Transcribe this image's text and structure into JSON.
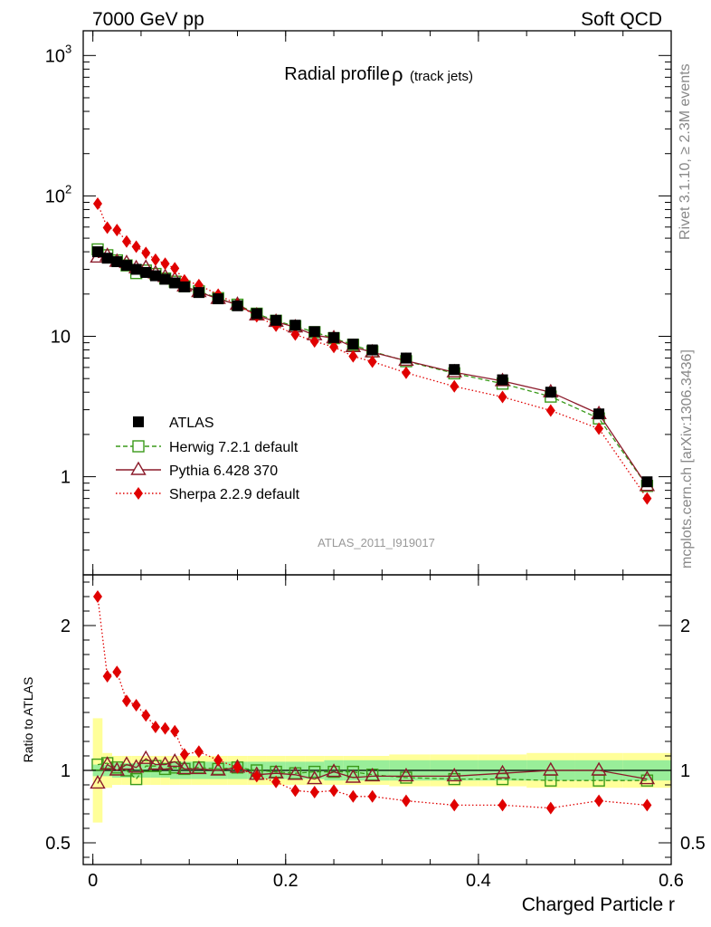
{
  "header": {
    "left": "7000 GeV pp",
    "right": "Soft QCD"
  },
  "side": {
    "top": "Rivet 3.1.10, ≥ 2.3M events",
    "bottom": "mcplots.cern.ch [arXiv:1306.3436]"
  },
  "chart_data": {
    "type": "line",
    "title": "Radial profile",
    "title_symbol": "ρ",
    "title_suffix": "(track jets)",
    "analysis_tag": "ATLAS_2011_I919017",
    "xlabel": "Charged Particle r",
    "ylabel_ratio": "Ratio to ATLAS",
    "xlim": [
      -0.01,
      0.6
    ],
    "ylim_main": [
      0.2,
      1500
    ],
    "ylim_ratio": [
      0.35,
      2.35
    ],
    "y_scale_main": "log",
    "x_ticks": [
      "0",
      "0.2",
      "0.4",
      "0.6"
    ],
    "x_tick_values": [
      0,
      0.2,
      0.4,
      0.6
    ],
    "main_tick_labels": [
      "1",
      "10",
      "10",
      "10"
    ],
    "main_tick_exps": [
      "",
      "",
      "2",
      "3"
    ],
    "main_tick_values": [
      1,
      10,
      100,
      1000
    ],
    "ratio_tick_labels": [
      "0.5",
      "1",
      "2"
    ],
    "ratio_tick_values": [
      0.5,
      1,
      2
    ],
    "legend_position": "center-left",
    "x": [
      0.005,
      0.015,
      0.025,
      0.035,
      0.045,
      0.055,
      0.065,
      0.075,
      0.085,
      0.095,
      0.11,
      0.13,
      0.15,
      0.17,
      0.19,
      0.21,
      0.23,
      0.25,
      0.27,
      0.29,
      0.325,
      0.375,
      0.425,
      0.475,
      0.525,
      0.575
    ],
    "ratio_band_inner_half": [
      0.04,
      0.04,
      0.05,
      0.05,
      0.05,
      0.05,
      0.05,
      0.05,
      0.06,
      0.06,
      0.06,
      0.06,
      0.06,
      0.06,
      0.06,
      0.06,
      0.06,
      0.07,
      0.07,
      0.07,
      0.07,
      0.07,
      0.07,
      0.07,
      0.07,
      0.07
    ],
    "ratio_band_outer_half": [
      0.36,
      0.12,
      0.1,
      0.1,
      0.1,
      0.1,
      0.1,
      0.1,
      0.1,
      0.1,
      0.1,
      0.1,
      0.1,
      0.1,
      0.1,
      0.1,
      0.1,
      0.1,
      0.1,
      0.1,
      0.11,
      0.11,
      0.11,
      0.12,
      0.12,
      0.12
    ],
    "series": [
      {
        "name": "ATLAS",
        "key": "data",
        "color": "#000000",
        "values": [
          40,
          36,
          34,
          32,
          30,
          28.5,
          27,
          25.5,
          24,
          22.5,
          20.5,
          18.5,
          16.5,
          14.5,
          13,
          12,
          10.8,
          9.8,
          8.8,
          8,
          7,
          5.8,
          4.9,
          4,
          2.8,
          0.92
        ],
        "ratio": [
          1,
          1,
          1,
          1,
          1,
          1,
          1,
          1,
          1,
          1,
          1,
          1,
          1,
          1,
          1,
          1,
          1,
          1,
          1,
          1,
          1,
          1,
          1,
          1,
          1,
          1
        ]
      },
      {
        "name": "Herwig 7.2.1 default",
        "key": "herwig",
        "color": "#3a9a1a",
        "values": [
          41.6,
          37.8,
          34.7,
          32,
          28.2,
          29.4,
          27.8,
          25.8,
          24.5,
          22.7,
          20.9,
          18.7,
          16.8,
          14.5,
          12.9,
          11.8,
          10.7,
          9.7,
          8.7,
          7.8,
          6.65,
          5.45,
          4.6,
          3.72,
          2.6,
          0.86
        ],
        "ratio": [
          1.04,
          1.05,
          1.02,
          1.0,
          0.94,
          1.03,
          1.03,
          1.01,
          1.02,
          1.01,
          1.02,
          1.01,
          1.02,
          1.0,
          0.99,
          0.98,
          0.99,
          0.99,
          0.99,
          0.97,
          0.95,
          0.94,
          0.94,
          0.93,
          0.93,
          0.93
        ]
      },
      {
        "name": "Pythia 6.428 370",
        "key": "pythia",
        "color": "#8b1a2a",
        "values": [
          36.4,
          37.4,
          34,
          33.3,
          30.6,
          30.8,
          28.1,
          26.5,
          25.4,
          22.7,
          20.7,
          18.5,
          16.8,
          14.1,
          12.7,
          11.6,
          10.2,
          9.7,
          8.4,
          7.7,
          6.7,
          5.55,
          4.8,
          4,
          2.8,
          0.86
        ],
        "ratio": [
          0.91,
          1.04,
          1.0,
          1.04,
          1.02,
          1.08,
          1.04,
          1.04,
          1.06,
          1.01,
          1.01,
          1.0,
          1.02,
          0.97,
          0.98,
          0.97,
          0.94,
          0.99,
          0.95,
          0.96,
          0.96,
          0.96,
          0.98,
          1.0,
          1.0,
          0.94
        ]
      },
      {
        "name": "Sherpa 2.2.9 default",
        "key": "sherpa",
        "color": "#e00000",
        "values": [
          88,
          59.4,
          57.1,
          47.4,
          43.5,
          39.3,
          35.1,
          32.9,
          30.5,
          25,
          23.2,
          19.8,
          16.8,
          13.9,
          11.9,
          10.3,
          9.2,
          8.4,
          7.2,
          6.6,
          5.5,
          4.4,
          3.7,
          2.96,
          2.2,
          0.7
        ],
        "ratio": [
          2.2,
          1.65,
          1.68,
          1.48,
          1.45,
          1.38,
          1.3,
          1.29,
          1.27,
          1.11,
          1.13,
          1.07,
          1.02,
          0.96,
          0.92,
          0.86,
          0.85,
          0.86,
          0.82,
          0.82,
          0.79,
          0.76,
          0.76,
          0.74,
          0.79,
          0.76
        ]
      }
    ]
  }
}
